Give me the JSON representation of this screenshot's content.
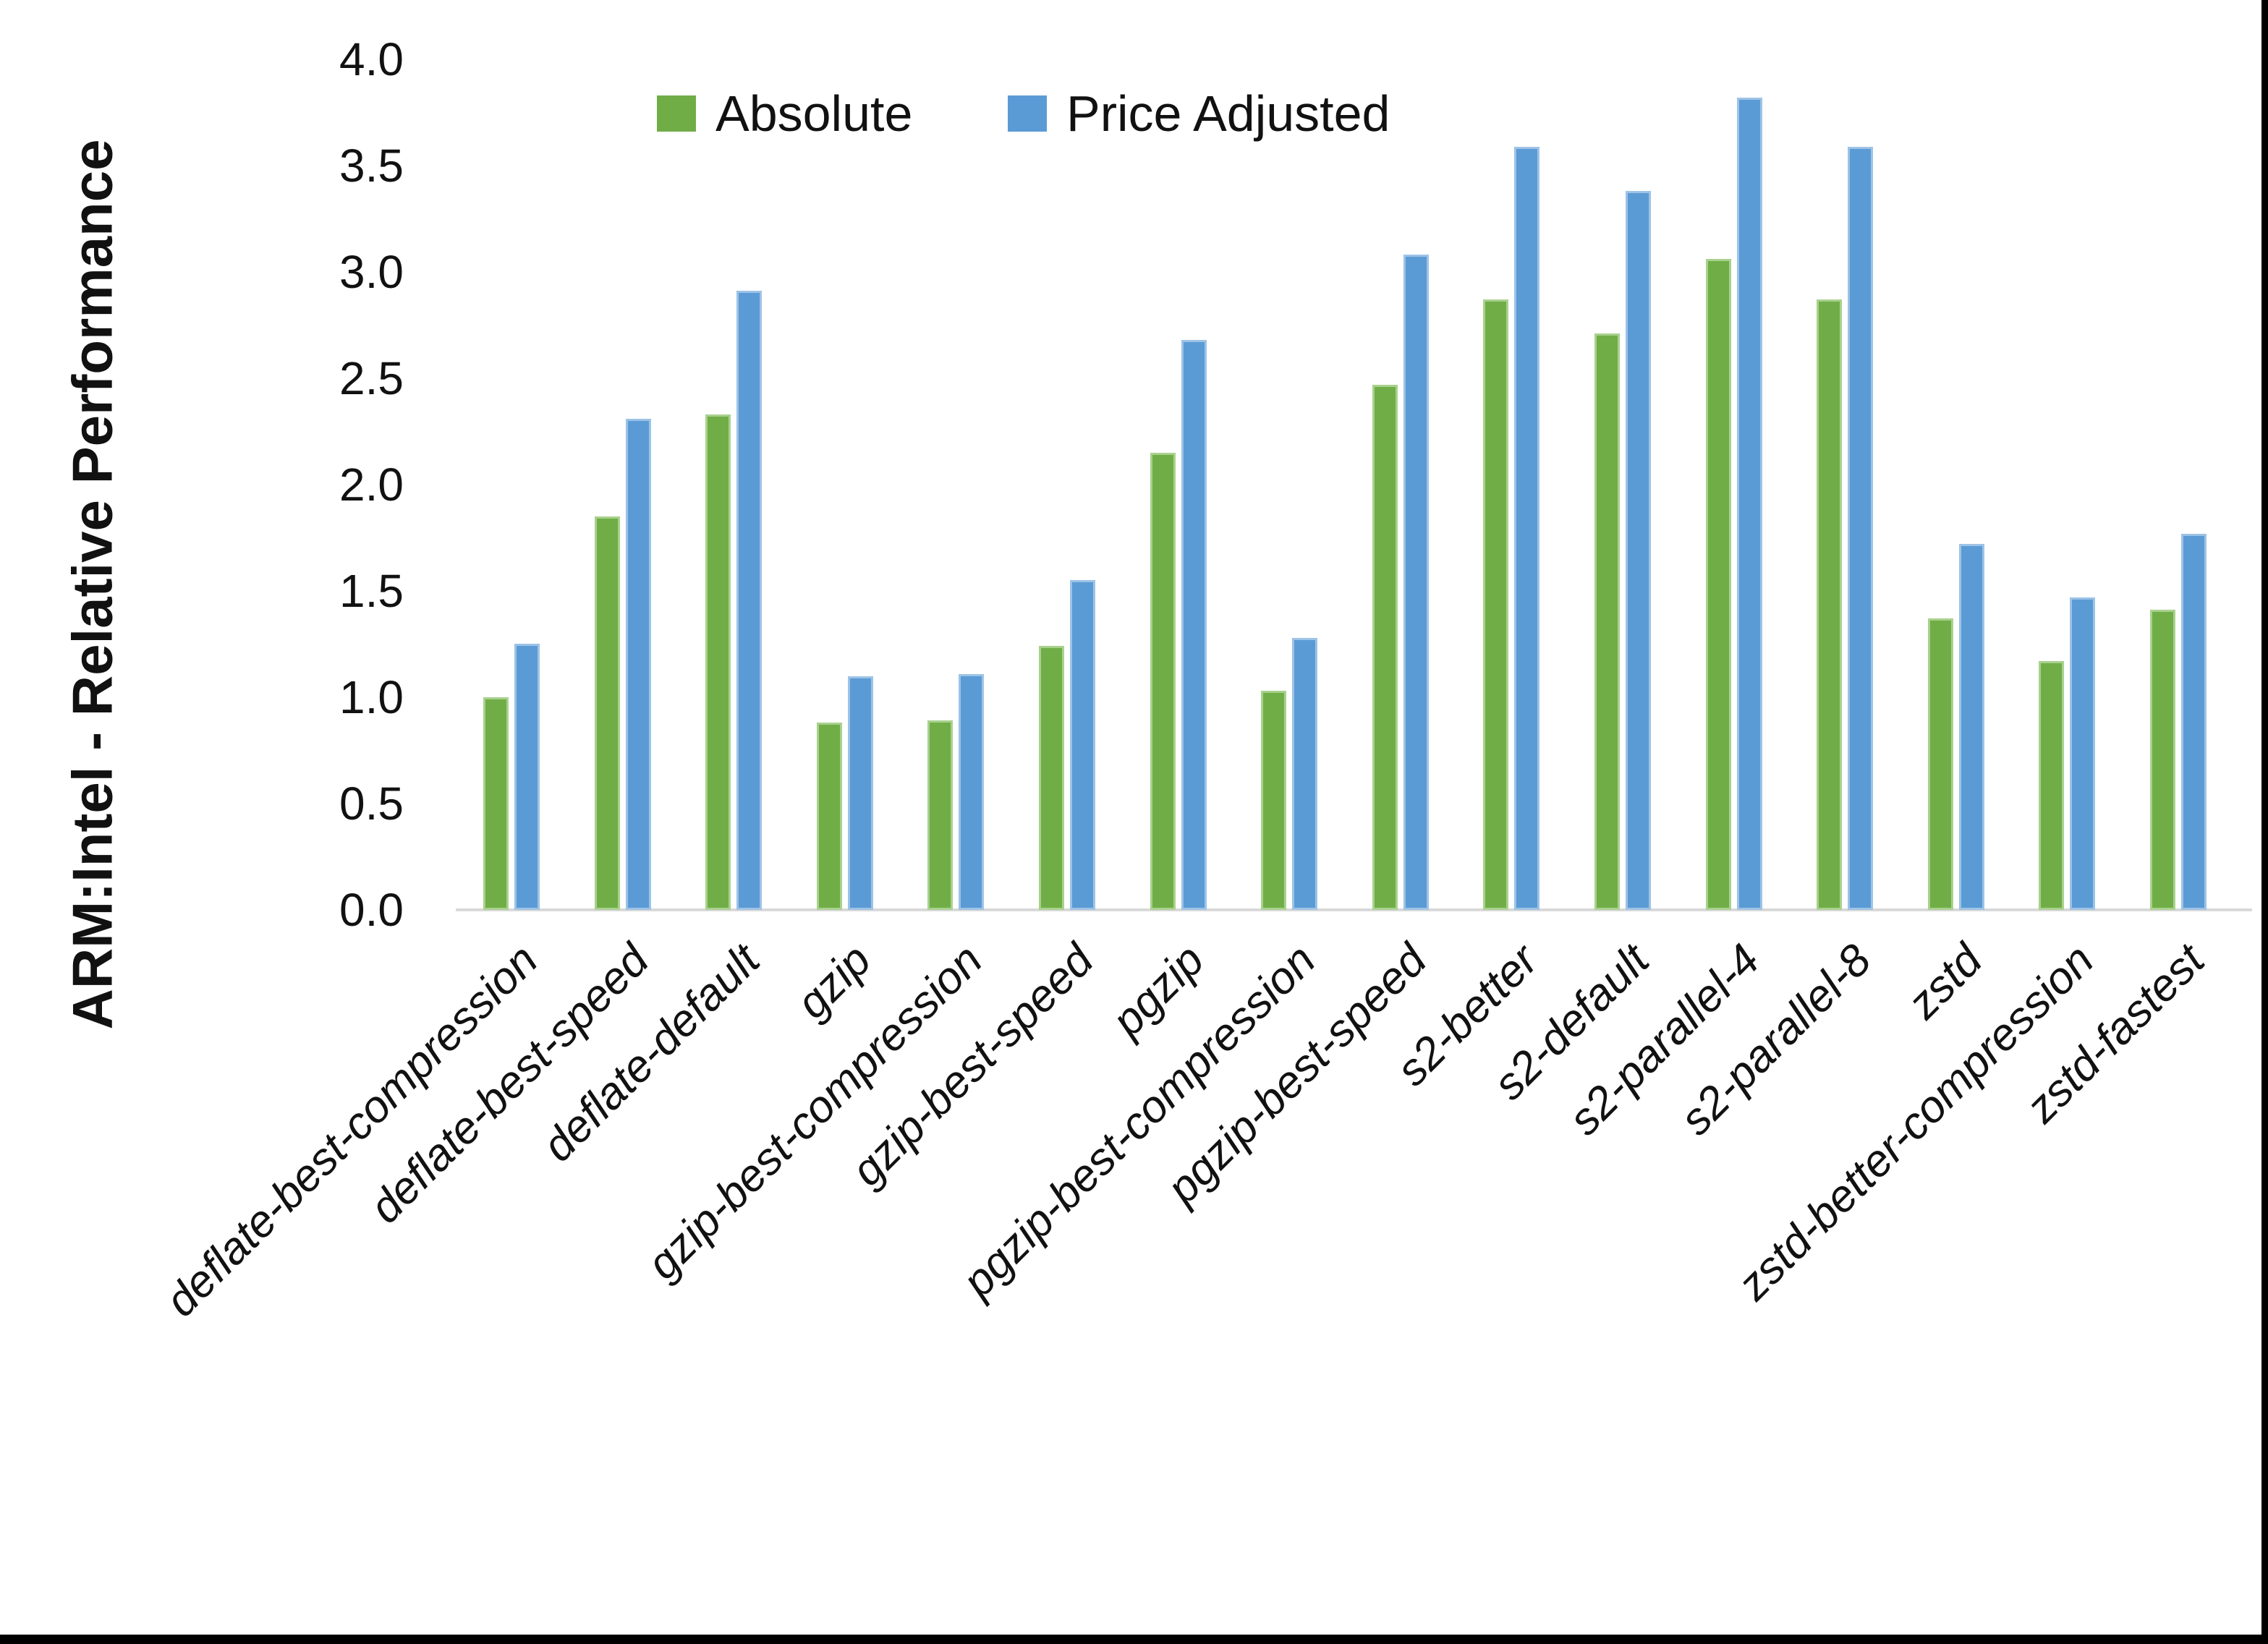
{
  "chart_data": {
    "type": "bar",
    "title": "",
    "ylabel": "ARM:Intel - Relative Performance",
    "xlabel": "",
    "ylim": [
      0.0,
      4.0
    ],
    "ytick_step": 0.5,
    "ytick_labels": [
      "0.0",
      "0.5",
      "1.0",
      "1.5",
      "2.0",
      "2.5",
      "3.0",
      "3.5",
      "4.0"
    ],
    "grid": false,
    "legend_position": "top-center",
    "axis_line_color": "#D9D9D9",
    "categories": [
      "deflate-best-compression",
      "deflate-best-speed",
      "deflate-default",
      "gzip",
      "gzip-best-compression",
      "gzip-best-speed",
      "pgzip",
      "pgzip-best-compression",
      "pgzip-best-speed",
      "s2-better",
      "s2-default",
      "s2-parallel-4",
      "s2-parallel-8",
      "zstd",
      "zstd-better-compression",
      "zstd-fastest"
    ],
    "series": [
      {
        "name": "Absolute",
        "color": "#70AD47",
        "border_color": "#A9D18E",
        "values": [
          1.0,
          1.85,
          2.33,
          0.88,
          0.89,
          1.24,
          2.15,
          1.03,
          2.47,
          2.87,
          2.71,
          3.06,
          2.87,
          1.37,
          1.17,
          1.41
        ]
      },
      {
        "name": "Price Adjusted",
        "color": "#5B9BD5",
        "border_color": "#9DC3E6",
        "values": [
          1.25,
          2.31,
          2.91,
          1.1,
          1.11,
          1.55,
          2.68,
          1.28,
          3.08,
          3.59,
          3.38,
          3.82,
          3.59,
          1.72,
          1.47,
          1.77
        ]
      }
    ]
  }
}
